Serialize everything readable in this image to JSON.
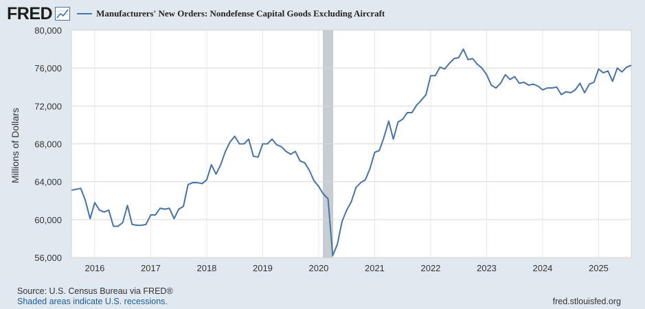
{
  "header": {
    "logo_text": "FRED"
  },
  "chart_data": {
    "type": "line",
    "title": "Manufacturers' New Orders: Nondefense Capital Goods Excluding Aircraft",
    "ylabel": "Millions of Dollars",
    "xlabel": "",
    "ylim": [
      56000,
      80000
    ],
    "xlim": [
      "2015-08",
      "2025-08"
    ],
    "y_ticks": [
      "56,000",
      "60,000",
      "64,000",
      "68,000",
      "72,000",
      "76,000",
      "80,000"
    ],
    "x_ticks": [
      "2016",
      "2017",
      "2018",
      "2019",
      "2020",
      "2021",
      "2022",
      "2023",
      "2024",
      "2025"
    ],
    "grid": true,
    "legend": "top-left",
    "colors": {
      "line": "#4572a7",
      "recession": "#c8cdd4",
      "background": "#e1e9f0",
      "plot": "#ffffff"
    },
    "recessions": [
      {
        "start": "2020-02",
        "end": "2020-04"
      }
    ],
    "series": [
      {
        "name": "Manufacturers' New Orders: Nondefense Capital Goods Excluding Aircraft",
        "data": [
          [
            "2015-08",
            63100
          ],
          [
            "2015-09",
            63200
          ],
          [
            "2015-10",
            63300
          ],
          [
            "2015-11",
            62000
          ],
          [
            "2015-12",
            60100
          ],
          [
            "2016-01",
            61800
          ],
          [
            "2016-02",
            61000
          ],
          [
            "2016-03",
            60800
          ],
          [
            "2016-04",
            61000
          ],
          [
            "2016-05",
            59300
          ],
          [
            "2016-06",
            59300
          ],
          [
            "2016-07",
            59700
          ],
          [
            "2016-08",
            61500
          ],
          [
            "2016-09",
            59500
          ],
          [
            "2016-10",
            59400
          ],
          [
            "2016-11",
            59400
          ],
          [
            "2016-12",
            59500
          ],
          [
            "2017-01",
            60500
          ],
          [
            "2017-02",
            60500
          ],
          [
            "2017-03",
            61200
          ],
          [
            "2017-04",
            61100
          ],
          [
            "2017-05",
            61200
          ],
          [
            "2017-06",
            60100
          ],
          [
            "2017-07",
            61100
          ],
          [
            "2017-08",
            61400
          ],
          [
            "2017-09",
            63700
          ],
          [
            "2017-10",
            63900
          ],
          [
            "2017-11",
            63900
          ],
          [
            "2017-12",
            63800
          ],
          [
            "2018-01",
            64200
          ],
          [
            "2018-02",
            65800
          ],
          [
            "2018-03",
            64800
          ],
          [
            "2018-04",
            65800
          ],
          [
            "2018-05",
            67200
          ],
          [
            "2018-06",
            68200
          ],
          [
            "2018-07",
            68800
          ],
          [
            "2018-08",
            68000
          ],
          [
            "2018-09",
            68000
          ],
          [
            "2018-10",
            68500
          ],
          [
            "2018-11",
            66700
          ],
          [
            "2018-12",
            66600
          ],
          [
            "2019-01",
            68000
          ],
          [
            "2019-02",
            68000
          ],
          [
            "2019-03",
            68500
          ],
          [
            "2019-04",
            67900
          ],
          [
            "2019-05",
            67700
          ],
          [
            "2019-06",
            67200
          ],
          [
            "2019-07",
            66900
          ],
          [
            "2019-08",
            67200
          ],
          [
            "2019-09",
            66200
          ],
          [
            "2019-10",
            66000
          ],
          [
            "2019-11",
            65200
          ],
          [
            "2019-12",
            64100
          ],
          [
            "2020-01",
            63500
          ],
          [
            "2020-02",
            62700
          ],
          [
            "2020-03",
            62200
          ],
          [
            "2020-04",
            56200
          ],
          [
            "2020-05",
            57400
          ],
          [
            "2020-06",
            59800
          ],
          [
            "2020-07",
            61000
          ],
          [
            "2020-08",
            61900
          ],
          [
            "2020-09",
            63400
          ],
          [
            "2020-10",
            63900
          ],
          [
            "2020-11",
            64200
          ],
          [
            "2020-12",
            65400
          ],
          [
            "2021-01",
            67100
          ],
          [
            "2021-02",
            67300
          ],
          [
            "2021-03",
            68700
          ],
          [
            "2021-04",
            70400
          ],
          [
            "2021-05",
            68500
          ],
          [
            "2021-06",
            70300
          ],
          [
            "2021-07",
            70600
          ],
          [
            "2021-08",
            71300
          ],
          [
            "2021-09",
            71300
          ],
          [
            "2021-10",
            72100
          ],
          [
            "2021-11",
            72600
          ],
          [
            "2021-12",
            73200
          ],
          [
            "2022-01",
            75200
          ],
          [
            "2022-02",
            75200
          ],
          [
            "2022-03",
            76100
          ],
          [
            "2022-04",
            75900
          ],
          [
            "2022-05",
            76500
          ],
          [
            "2022-06",
            77000
          ],
          [
            "2022-07",
            77100
          ],
          [
            "2022-08",
            78000
          ],
          [
            "2022-09",
            76900
          ],
          [
            "2022-10",
            77000
          ],
          [
            "2022-11",
            76400
          ],
          [
            "2022-12",
            76000
          ],
          [
            "2023-01",
            75300
          ],
          [
            "2023-02",
            74200
          ],
          [
            "2023-03",
            73900
          ],
          [
            "2023-04",
            74400
          ],
          [
            "2023-05",
            75300
          ],
          [
            "2023-06",
            74800
          ],
          [
            "2023-07",
            75100
          ],
          [
            "2023-08",
            74400
          ],
          [
            "2023-09",
            74500
          ],
          [
            "2023-10",
            74200
          ],
          [
            "2023-11",
            74300
          ],
          [
            "2023-12",
            74100
          ],
          [
            "2024-01",
            73700
          ],
          [
            "2024-02",
            73900
          ],
          [
            "2024-03",
            73900
          ],
          [
            "2024-04",
            74000
          ],
          [
            "2024-05",
            73200
          ],
          [
            "2024-06",
            73500
          ],
          [
            "2024-07",
            73400
          ],
          [
            "2024-08",
            73700
          ],
          [
            "2024-09",
            74400
          ],
          [
            "2024-10",
            73400
          ],
          [
            "2024-11",
            74300
          ],
          [
            "2024-12",
            74500
          ],
          [
            "2025-01",
            75900
          ],
          [
            "2025-02",
            75500
          ],
          [
            "2025-03",
            75700
          ],
          [
            "2025-04",
            74600
          ],
          [
            "2025-05",
            76000
          ],
          [
            "2025-06",
            75600
          ],
          [
            "2025-07",
            76100
          ],
          [
            "2025-08",
            76300
          ]
        ]
      }
    ]
  },
  "footer": {
    "source": "Source: U.S. Census Bureau via FRED®",
    "recessions_note": "Shaded areas indicate U.S. recessions.",
    "url": "fred.stlouisfed.org"
  }
}
